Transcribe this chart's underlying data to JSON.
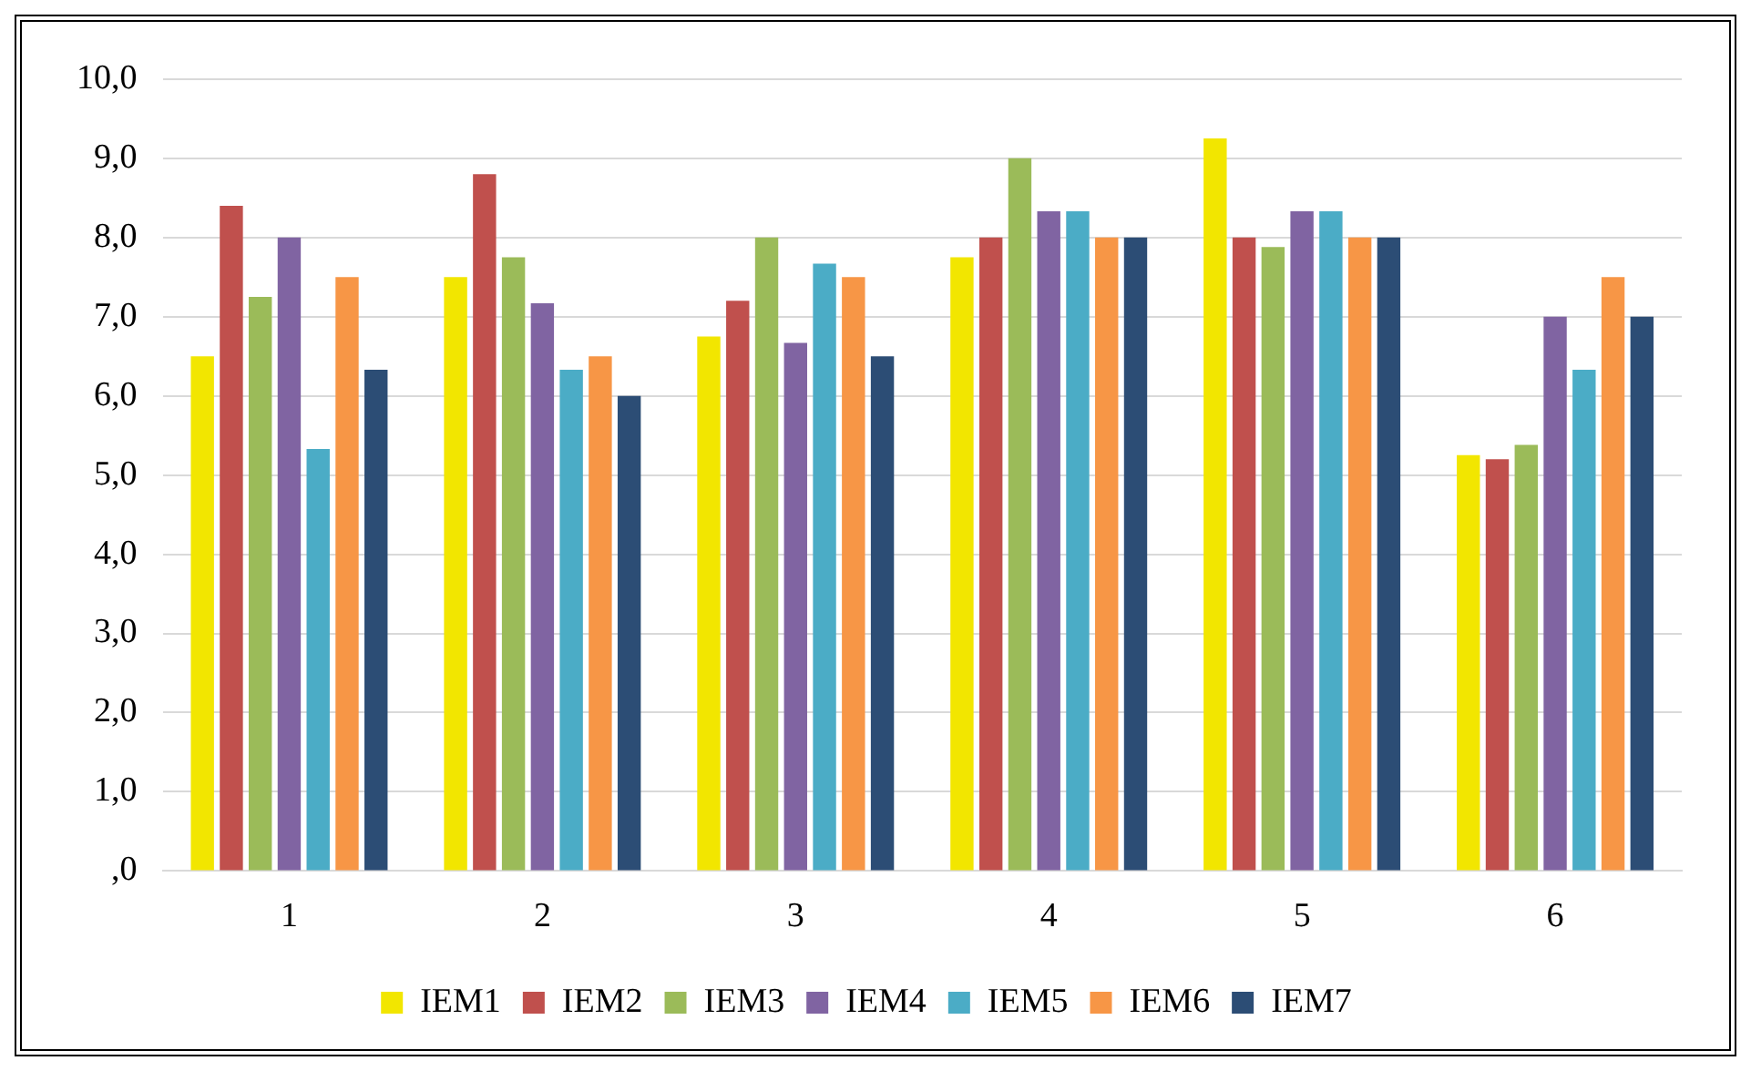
{
  "chart_data": {
    "type": "bar",
    "categories": [
      "1",
      "2",
      "3",
      "4",
      "5",
      "6"
    ],
    "series": [
      {
        "name": "IEM1",
        "color": "#f2e600",
        "values": [
          6.5,
          7.5,
          6.75,
          7.75,
          9.25,
          5.25
        ]
      },
      {
        "name": "IEM2",
        "color": "#c0504d",
        "values": [
          8.4,
          8.8,
          7.2,
          8.0,
          8.0,
          5.2
        ]
      },
      {
        "name": "IEM3",
        "color": "#9bbb59",
        "values": [
          7.25,
          7.75,
          8.0,
          9.0,
          7.88,
          5.38
        ]
      },
      {
        "name": "IEM4",
        "color": "#8064a2",
        "values": [
          8.0,
          7.17,
          6.67,
          8.33,
          8.33,
          7.0
        ]
      },
      {
        "name": "IEM5",
        "color": "#4bacc6",
        "values": [
          5.33,
          6.33,
          7.67,
          8.33,
          8.33,
          6.33
        ]
      },
      {
        "name": "IEM6",
        "color": "#f79646",
        "values": [
          7.5,
          6.5,
          7.5,
          8.0,
          8.0,
          7.5
        ]
      },
      {
        "name": "IEM7",
        "color": "#2c4d75",
        "values": [
          6.33,
          6.0,
          6.5,
          8.0,
          8.0,
          7.0
        ]
      }
    ],
    "ylim": [
      0,
      10
    ],
    "yticks": [
      {
        "value": 0,
        "label": ",0"
      },
      {
        "value": 1,
        "label": "1,0"
      },
      {
        "value": 2,
        "label": "2,0"
      },
      {
        "value": 3,
        "label": "3,0"
      },
      {
        "value": 4,
        "label": "4,0"
      },
      {
        "value": 5,
        "label": "5,0"
      },
      {
        "value": 6,
        "label": "6,0"
      },
      {
        "value": 7,
        "label": "7,0"
      },
      {
        "value": 8,
        "label": "8,0"
      },
      {
        "value": 9,
        "label": "9,0"
      },
      {
        "value": 10,
        "label": "10,0"
      }
    ],
    "grid": "y",
    "legend": "bottom"
  }
}
